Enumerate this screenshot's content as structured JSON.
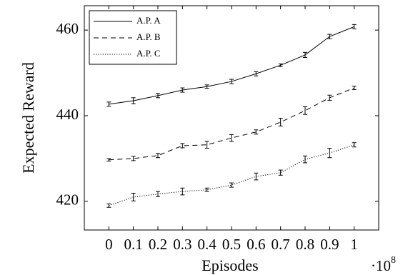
{
  "chart_data": {
    "type": "line",
    "x_label": "Episodes",
    "y_label": "Expected Reward",
    "x_multiplier": {
      "base": "·10",
      "exponent": "8"
    },
    "x": [
      0,
      0.1,
      0.2,
      0.3,
      0.4,
      0.5,
      0.6,
      0.7,
      0.8,
      0.9,
      1
    ],
    "xlim": [
      -0.1,
      1.1
    ],
    "xticks": [
      0,
      0.1,
      0.2,
      0.3,
      0.4,
      0.5,
      0.6,
      0.7,
      0.8,
      0.9,
      1
    ],
    "ylim": [
      413.3,
      465.7
    ],
    "yticks": [
      420,
      440,
      460
    ],
    "legend_position": "upper left",
    "series": [
      {
        "name": "A.P. A",
        "color": "#000000",
        "style": "solid",
        "values": [
          442.7,
          443.5,
          444.7,
          446,
          446.8,
          448,
          449.8,
          451.8,
          454.2,
          458.5,
          460.8
        ],
        "errors": [
          0.5,
          0.7,
          0.5,
          0.5,
          0.4,
          0.5,
          0.5,
          0.3,
          0.6,
          0.5,
          0.5
        ]
      },
      {
        "name": "A.P. B",
        "color": "#000000",
        "style": "dashed",
        "values": [
          429.7,
          430,
          430.7,
          433,
          433.2,
          434.8,
          436.2,
          438.5,
          441.2,
          444.2,
          446.5
        ],
        "errors": [
          0.3,
          0.5,
          0.5,
          0.5,
          0.8,
          0.8,
          0.5,
          0.9,
          0.9,
          0.6,
          0.4
        ]
      },
      {
        "name": "A.P. C",
        "color": "#000000",
        "style": "dotted",
        "values": [
          419,
          421,
          421.7,
          422.3,
          422.7,
          423.8,
          425.8,
          426.7,
          429.8,
          431.3,
          433.2
        ],
        "errors": [
          0.4,
          0.9,
          0.6,
          0.8,
          0.4,
          0.5,
          0.8,
          0.6,
          0.8,
          1.1,
          0.5
        ]
      }
    ]
  }
}
